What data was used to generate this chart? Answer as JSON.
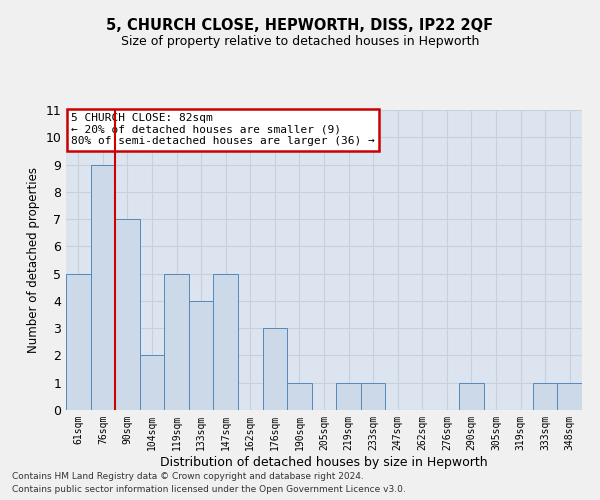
{
  "title": "5, CHURCH CLOSE, HEPWORTH, DISS, IP22 2QF",
  "subtitle": "Size of property relative to detached houses in Hepworth",
  "xlabel": "Distribution of detached houses by size in Hepworth",
  "ylabel": "Number of detached properties",
  "categories": [
    "61sqm",
    "76sqm",
    "90sqm",
    "104sqm",
    "119sqm",
    "133sqm",
    "147sqm",
    "162sqm",
    "176sqm",
    "190sqm",
    "205sqm",
    "219sqm",
    "233sqm",
    "247sqm",
    "262sqm",
    "276sqm",
    "290sqm",
    "305sqm",
    "319sqm",
    "333sqm",
    "348sqm"
  ],
  "values": [
    5,
    9,
    7,
    2,
    5,
    4,
    5,
    0,
    3,
    1,
    0,
    1,
    1,
    0,
    0,
    0,
    1,
    0,
    0,
    1,
    1
  ],
  "bar_color": "#ccd9e8",
  "bar_edge_color": "#5588bb",
  "vline_color": "#cc0000",
  "annotation_lines": [
    "5 CHURCH CLOSE: 82sqm",
    "← 20% of detached houses are smaller (9)",
    "80% of semi-detached houses are larger (36) →"
  ],
  "annotation_box_color": "#ffffff",
  "annotation_box_edge_color": "#cc0000",
  "ylim": [
    0,
    11
  ],
  "yticks": [
    0,
    1,
    2,
    3,
    4,
    5,
    6,
    7,
    8,
    9,
    10,
    11
  ],
  "grid_color": "#c8d0dc",
  "plot_bg_color": "#dce4ef",
  "fig_bg_color": "#f0f0f0",
  "footer_line1": "Contains HM Land Registry data © Crown copyright and database right 2024.",
  "footer_line2": "Contains public sector information licensed under the Open Government Licence v3.0."
}
